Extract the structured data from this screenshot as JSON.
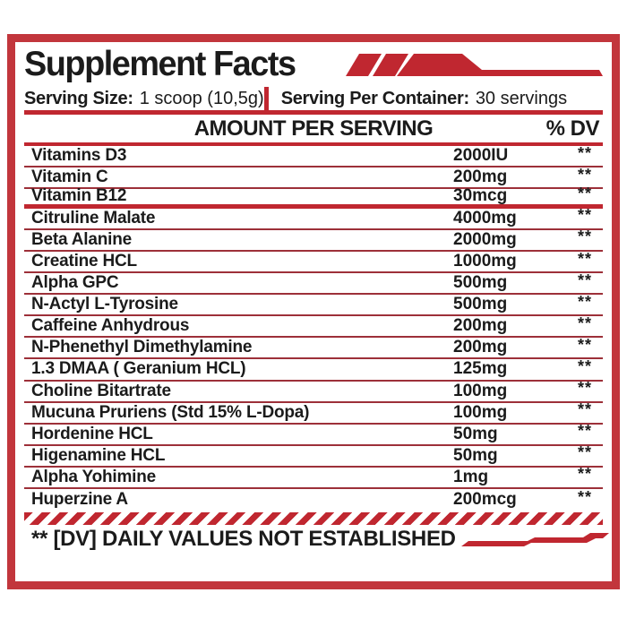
{
  "label": {
    "title": "Supplement Facts",
    "serving_size_label": "Serving Size:",
    "serving_size_value": "1 scoop (10,5g)",
    "servings_per_container_label": "Serving Per Container:",
    "servings_per_container_value": "30 servings",
    "footnote": "** [DV] DAILY VALUES NOT ESTABLISHED"
  },
  "table": {
    "amount_header": "AMOUNT PER SERVING",
    "dv_header": "% DV",
    "rows": [
      {
        "name": "Vitamins D3",
        "amount": "2000IU",
        "dv": "**"
      },
      {
        "name": "Vitamin C",
        "amount": "200mg",
        "dv": "**"
      },
      {
        "name": "Vitamin B12",
        "amount": "30mcg",
        "dv": "**",
        "rule_after": "thick"
      },
      {
        "name": "Citruline Malate",
        "amount": "4000mg",
        "dv": "**"
      },
      {
        "name": "Beta Alanine",
        "amount": "2000mg",
        "dv": "**"
      },
      {
        "name": "Creatine HCL",
        "amount": "1000mg",
        "dv": "**"
      },
      {
        "name": "Alpha GPC",
        "amount": "500mg",
        "dv": "**"
      },
      {
        "name": "N-Actyl L-Tyrosine",
        "amount": "500mg",
        "dv": "**"
      },
      {
        "name": "Caffeine Anhydrous",
        "amount": "200mg",
        "dv": "**"
      },
      {
        "name": "N-Phenethyl Dimethylamine",
        "amount": "200mg",
        "dv": "**"
      },
      {
        "name": "1.3 DMAA ( Geranium HCL)",
        "amount": "125mg",
        "dv": "**"
      },
      {
        "name": "Choline Bitartrate",
        "amount": "100mg",
        "dv": "**"
      },
      {
        "name": "Mucuna Pruriens (Std 15% L-Dopa)",
        "amount": "100mg",
        "dv": "**"
      },
      {
        "name": "Hordenine HCL",
        "amount": "50mg",
        "dv": "**"
      },
      {
        "name": "Higenamine HCL",
        "amount": "50mg",
        "dv": "**"
      },
      {
        "name": "Alpha Yohimine",
        "amount": "1mg",
        "dv": "**"
      },
      {
        "name": "Huperzine A",
        "amount": "200mcg",
        "dv": "**",
        "rule_after": "none"
      }
    ]
  },
  "icons": {
    "top_accent": "triple-slash-banner-icon",
    "footer_accent": "stepped-line-icon"
  },
  "colors": {
    "accent_red": "#c02730",
    "rule_red": "#9d3039",
    "frame_red": "#c2363c",
    "text_black": "#1b1b1b",
    "background": "#ffffff"
  }
}
